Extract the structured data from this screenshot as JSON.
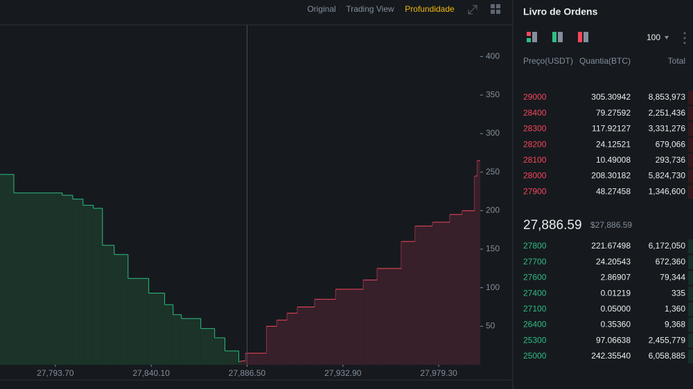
{
  "tabs": [
    "Original",
    "Trading View",
    "Profundidade"
  ],
  "chart_data": {
    "type": "depth",
    "xlim": [
      27766.9,
      27999.4
    ],
    "ylim": [
      0,
      441
    ],
    "xticks": [
      {
        "value": 27793.7,
        "label": "27,793.70"
      },
      {
        "value": 27840.1,
        "label": "27,840.10"
      },
      {
        "value": 27886.5,
        "label": "27,886.50"
      },
      {
        "value": 27932.9,
        "label": "27,932.90"
      },
      {
        "value": 27979.3,
        "label": "27,979.30"
      }
    ],
    "yticks": [
      50,
      100,
      150,
      200,
      250,
      300,
      350,
      400
    ],
    "mid": 27886.5,
    "series": [
      {
        "name": "bids",
        "color": "#2ebd85",
        "fill": "#1b3328",
        "x": [
          27766.9,
          27773.6,
          27797.05,
          27802.1,
          27807.1,
          27812.1,
          27816.5,
          27822.2,
          27828.9,
          27838.9,
          27846.6,
          27850.7,
          27854.7,
          27864.1,
          27870.8,
          27875.8,
          27882.5
        ],
        "values": [
          247,
          223,
          220,
          215,
          207,
          203,
          155,
          143,
          112,
          93,
          78,
          65,
          60,
          47,
          35,
          18,
          4
        ]
      },
      {
        "name": "asks",
        "color": "#f6465d",
        "fill": "#37202a",
        "x": [
          27883.5,
          27885.8,
          27895.9,
          27900.9,
          27905.9,
          27910.9,
          27919.3,
          27929.4,
          27942.8,
          27949.5,
          27961.2,
          27967.9,
          27976.3,
          27984.7,
          27990.7,
          27996.7,
          27998.0
        ],
        "values": [
          5,
          15,
          50,
          58,
          67,
          75,
          85,
          98,
          110,
          125,
          160,
          180,
          185,
          195,
          200,
          245,
          265
        ]
      }
    ]
  },
  "order_book": {
    "title": "Livro de Ordens",
    "depth": "100",
    "columns": [
      "Preço(USDT)",
      "Quantia(BTC)",
      "Total"
    ],
    "asks": [
      [
        "29000",
        "305.30942",
        "8,853,973"
      ],
      [
        "28400",
        "79.27592",
        "2,251,436"
      ],
      [
        "28300",
        "117.92127",
        "3,331,276"
      ],
      [
        "28200",
        "24.12521",
        "679,066"
      ],
      [
        "28100",
        "10.49008",
        "293,736"
      ],
      [
        "28000",
        "208.30182",
        "5,824,730"
      ],
      [
        "27900",
        "48.27458",
        "1,346,600"
      ]
    ],
    "last_price": "27,886.59",
    "last_price_usd": "$27,886.59",
    "bids": [
      [
        "27800",
        "221.67498",
        "6,172,050"
      ],
      [
        "27700",
        "24.20543",
        "672,360"
      ],
      [
        "27600",
        "2.86907",
        "79,344"
      ],
      [
        "27400",
        "0.01219",
        "335"
      ],
      [
        "27100",
        "0.05000",
        "1,360"
      ],
      [
        "26400",
        "0.35360",
        "9,368"
      ],
      [
        "25300",
        "97.06638",
        "2,455,779"
      ],
      [
        "25000",
        "242.35540",
        "6,058,885"
      ]
    ]
  }
}
